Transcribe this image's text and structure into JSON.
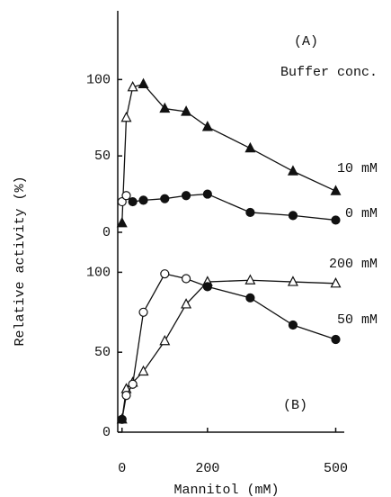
{
  "chart_data": [
    {
      "type": "line",
      "ylabel": "Relative activity (%)",
      "annotations": [
        "(A)",
        "Buffer conc."
      ],
      "xlim": [
        -10,
        520
      ],
      "ylim": [
        0,
        145
      ],
      "yticks": [
        0,
        50,
        100
      ],
      "x": [
        0,
        10,
        25,
        50,
        100,
        150,
        200,
        300,
        400,
        500
      ],
      "series": [
        {
          "name": "10 mM",
          "color": "#111111",
          "marker": "triangle",
          "values": [
            6,
            75,
            95,
            97,
            81,
            79,
            69,
            55,
            40,
            27
          ],
          "filled": [
            true,
            false,
            false,
            true,
            true,
            true,
            true,
            true,
            true,
            true
          ]
        },
        {
          "name": "0 mM",
          "color": "#111111",
          "marker": "circle",
          "values": [
            20,
            24,
            20,
            21,
            22,
            24,
            25,
            13,
            11,
            8
          ],
          "filled": [
            false,
            false,
            true,
            true,
            true,
            true,
            true,
            true,
            true,
            true
          ]
        }
      ]
    },
    {
      "type": "line",
      "xlabel": "Mannitol (mM)",
      "annotations": [
        "(B)"
      ],
      "xlim": [
        -10,
        520
      ],
      "xticks": [
        0,
        200,
        500
      ],
      "ylim": [
        0,
        125
      ],
      "yticks": [
        0,
        50,
        100
      ],
      "x": [
        0,
        10,
        25,
        50,
        100,
        150,
        200,
        300,
        400,
        500
      ],
      "series": [
        {
          "name": "200 mM",
          "color": "#111111",
          "marker": "triangle",
          "values": [
            8,
            27,
            31,
            38,
            57,
            80,
            94,
            95,
            94,
            93
          ],
          "filled": [
            true,
            false,
            false,
            false,
            false,
            false,
            false,
            false,
            false,
            false
          ]
        },
        {
          "name": "50 mM",
          "color": "#111111",
          "marker": "circle",
          "values": [
            8,
            23,
            30,
            75,
            99,
            96,
            91,
            84,
            67,
            58
          ],
          "filled": [
            true,
            false,
            false,
            false,
            false,
            false,
            true,
            true,
            true,
            true
          ]
        }
      ]
    }
  ]
}
